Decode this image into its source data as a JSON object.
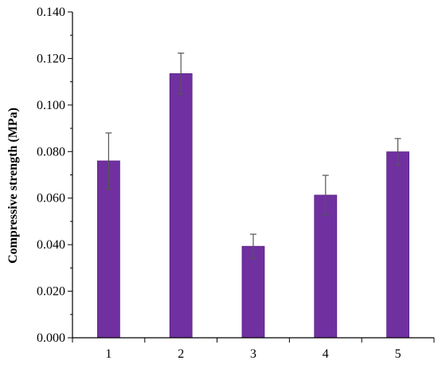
{
  "chart_data": {
    "type": "bar",
    "categories": [
      "1",
      "2",
      "3",
      "4",
      "5"
    ],
    "values": [
      0.076,
      0.1135,
      0.0393,
      0.0613,
      0.0799
    ],
    "error_bars": [
      0.012,
      0.0088,
      0.0052,
      0.0085,
      0.0057
    ],
    "title": "",
    "xlabel": "",
    "ylabel": "Compressive strength (MPa)",
    "ylim": [
      0,
      0.14
    ],
    "yticks": [
      0.0,
      0.02,
      0.04,
      0.06,
      0.08,
      0.1,
      0.12,
      0.14
    ],
    "ytick_labels": [
      "0.000",
      "0.020",
      "0.040",
      "0.060",
      "0.080",
      "0.100",
      "0.120",
      "0.140"
    ],
    "grid": false,
    "legend": "none",
    "colors": {
      "bar_fill": "#7030a0",
      "bar_edge": "#5a2485",
      "error_bar": "#555555",
      "axis": "#000000"
    }
  }
}
